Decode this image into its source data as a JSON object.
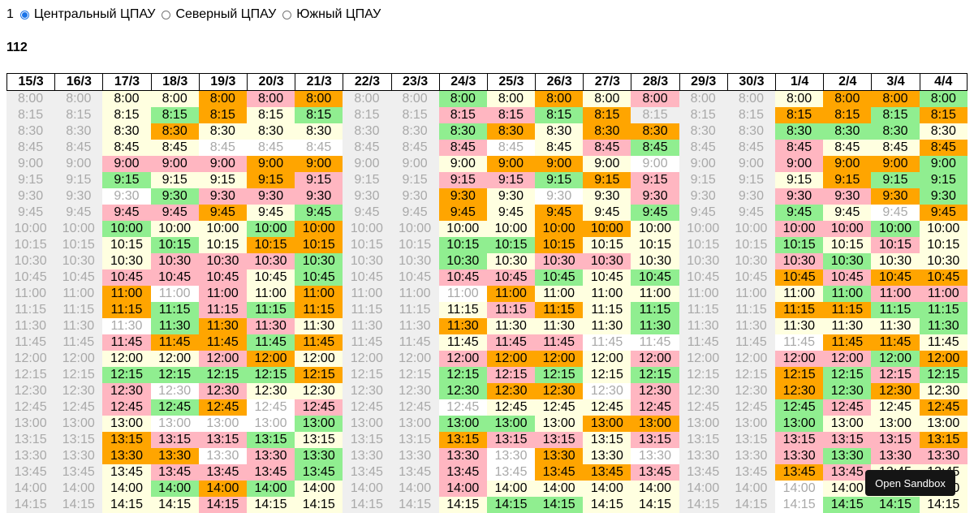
{
  "top": {
    "index": "1",
    "options": [
      {
        "label": "Центральный ЦПАУ",
        "checked": true
      },
      {
        "label": "Северный ЦПАУ",
        "checked": false
      },
      {
        "label": "Южный ЦПАУ",
        "checked": false
      }
    ]
  },
  "number": "112",
  "sandbox_button": "Open Sandbox",
  "colors": {
    "closed_bg": "#efefef",
    "closed_text": "#a9a9a9",
    "yellow": "#ffffe0",
    "green": "#90ee90",
    "pink": "#ffb6c1",
    "orange": "#ffa500"
  },
  "legend_codes": {
    "x": "closed column",
    "y": "yellow",
    "g": "green",
    "p": "pink",
    "o": "orange",
    "w": "available, inactive (grey text)"
  },
  "dates": [
    "15/3",
    "16/3",
    "17/3",
    "18/3",
    "19/3",
    "20/3",
    "21/3",
    "22/3",
    "23/3",
    "24/3",
    "25/3",
    "26/3",
    "27/3",
    "28/3",
    "29/3",
    "30/3",
    "1/4",
    "2/4",
    "3/4",
    "4/4"
  ],
  "times": [
    "8:00",
    "8:15",
    "8:30",
    "8:45",
    "9:00",
    "9:15",
    "9:30",
    "9:45",
    "10:00",
    "10:15",
    "10:30",
    "10:45",
    "11:00",
    "11:15",
    "11:30",
    "11:45",
    "12:00",
    "12:15",
    "12:30",
    "12:45",
    "13:00",
    "13:15",
    "13:30",
    "13:45",
    "14:00",
    "14:15"
  ],
  "cells": [
    "xxyyopoxxgyoypxxyoog",
    "xxygoygxxppgoxxxoogo",
    "xxyoyyyxxgoyooxxggga",
    "xxyywwwxxpwypgxxpyyo",
    "xxpppooxxyooywxxpoog",
    "xxgyyopxxppgopxxyogg",
    "xxwgpppxxoywypxxppog",
    "xxppoygxxoyoygxxgywo",
    "xxgyygoxxyyooyxxppgy",
    "xxygyooxxggoyyxxgypy",
    "xxypppgxxgyppyxxpgyy",
    "xxpppygxxppgygxxopoo",
    "xxowpyoxxwoyyyxxygpp",
    "xxogpgoxxypoygxxoogg",
    "xxwgopyxxoyyygxxyyyg",
    "xxpoogoxxyppwwxxwooy",
    "xxyypoyxxpooypxxppgo",
    "xxggggoxxgpgygxxogpg",
    "xxpwpyyxxgoowpxxogoy",
    "xxpgowpxxwyyypxxgpyo",
    "xxywwwgxxggyooxxgyyy",
    "xxoppgyxxoppypxxpppo",
    "xxoowpgxxpwoywxxpgpp",
    "xxypppgxxpwoopxxopyy",
    "xxygogyxxpyyyyxxwyyy",
    "xxyypyyxxyggyyxxwggy"
  ]
}
